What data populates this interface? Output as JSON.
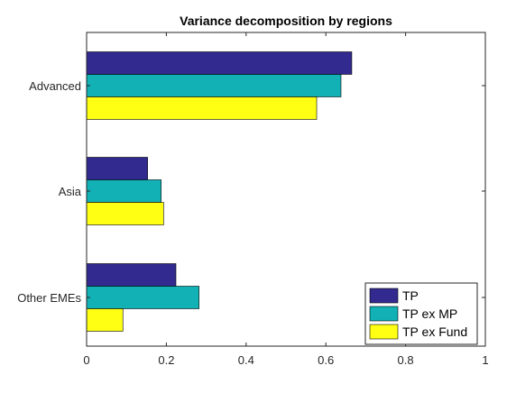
{
  "chart_data": {
    "type": "bar",
    "orientation": "horizontal",
    "title": "Variance decomposition by regions",
    "xlabel": "",
    "ylabel": "",
    "categories": [
      "Advanced",
      "Asia",
      "Other EMEs"
    ],
    "xlim": [
      0,
      1
    ],
    "xticks": [
      0,
      0.2,
      0.4,
      0.6,
      0.8,
      1
    ],
    "xtick_labels": [
      "0",
      "0.2",
      "0.4",
      "0.6",
      "0.8",
      "1"
    ],
    "grid": false,
    "legend_position": "bottom-right",
    "series": [
      {
        "name": "TP",
        "color": "#332a8f",
        "values": [
          0.665,
          0.153,
          0.224
        ]
      },
      {
        "name": "TP ex MP",
        "color": "#12b1b6",
        "values": [
          0.638,
          0.187,
          0.282
        ]
      },
      {
        "name": "TP ex Fund",
        "color": "#ffff14",
        "values": [
          0.577,
          0.193,
          0.091
        ]
      }
    ]
  }
}
